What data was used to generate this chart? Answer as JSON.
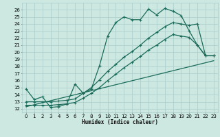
{
  "xlabel": "Humidex (Indice chaleur)",
  "bg_color": "#cce8e0",
  "grid_color": "#aacccc",
  "line_color": "#1a6b5a",
  "x_ticks": [
    0,
    1,
    2,
    3,
    4,
    5,
    6,
    7,
    8,
    9,
    10,
    11,
    12,
    13,
    14,
    15,
    16,
    17,
    18,
    19,
    20,
    21,
    22,
    23
  ],
  "y_ticks": [
    12,
    13,
    14,
    15,
    16,
    17,
    18,
    19,
    20,
    21,
    22,
    23,
    24,
    25,
    26
  ],
  "xlim": [
    -0.5,
    23.5
  ],
  "ylim": [
    11.5,
    27.0
  ],
  "line1_x": [
    0,
    1,
    2,
    3,
    4,
    5,
    6,
    7,
    8,
    9,
    10,
    11,
    12,
    13,
    14,
    15,
    16,
    17,
    18,
    19,
    20,
    21,
    22,
    23
  ],
  "line1_y": [
    14.8,
    13.3,
    13.7,
    12.2,
    12.3,
    12.7,
    15.5,
    14.2,
    14.8,
    18.1,
    22.3,
    24.2,
    25.0,
    24.6,
    24.6,
    26.1,
    25.3,
    26.2,
    25.8,
    25.2,
    23.0,
    21.0,
    19.5,
    19.5
  ],
  "line2_x": [
    0,
    1,
    2,
    3,
    4,
    5,
    6,
    7,
    8,
    9,
    10,
    11,
    12,
    13,
    14,
    15,
    16,
    17,
    18,
    19,
    20,
    21,
    22,
    23
  ],
  "line2_y": [
    13.0,
    13.0,
    13.0,
    13.0,
    13.1,
    13.2,
    13.4,
    14.2,
    15.0,
    16.1,
    17.3,
    18.3,
    19.3,
    20.1,
    21.0,
    22.0,
    22.8,
    23.6,
    24.2,
    24.0,
    23.8,
    24.0,
    19.5,
    19.5
  ],
  "line3_x": [
    0,
    1,
    2,
    3,
    4,
    5,
    6,
    7,
    8,
    9,
    10,
    11,
    12,
    13,
    14,
    15,
    16,
    17,
    18,
    19,
    20,
    21,
    22,
    23
  ],
  "line3_y": [
    12.5,
    12.5,
    12.5,
    12.5,
    12.6,
    12.7,
    12.9,
    13.5,
    14.2,
    15.0,
    16.0,
    16.9,
    17.8,
    18.6,
    19.4,
    20.3,
    21.0,
    21.8,
    22.5,
    22.3,
    22.1,
    21.0,
    19.5,
    19.5
  ],
  "line4_x": [
    0,
    23
  ],
  "line4_y": [
    12.3,
    18.8
  ],
  "marker": "+",
  "marker_size": 3,
  "linewidth": 0.9
}
